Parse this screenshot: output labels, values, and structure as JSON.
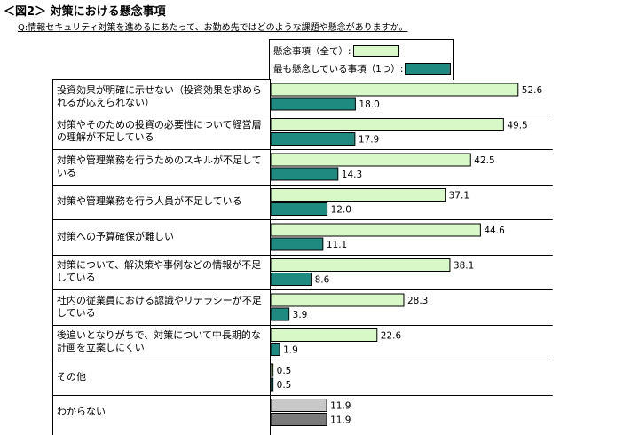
{
  "header": {
    "figure_title": "＜図2＞ 対策における懸念事項",
    "question": "Q:情報セキュリティ対策を進めるにあたって、お勤め先ではどのような課題や懸念がありますか。"
  },
  "colors": {
    "all_fill": "#d8f8c8",
    "top_fill": "#1f8a80",
    "all_fill_gray": "#c8c8c8",
    "top_fill_gray": "#7a7a7a",
    "border": "#000000"
  },
  "chart_data": {
    "type": "bar",
    "orientation": "horizontal",
    "title": "＜図2＞ 対策における懸念事項",
    "xlim": [
      0,
      60
    ],
    "legend": [
      "懸念事項（全て）:",
      "最も懸念している事項（1つ）:"
    ],
    "legend_position": "top",
    "categories": [
      "投資効果が明確に示せない（投資効果を求められるが応えられない）",
      "対策やそのための投資の必要性について経営層の理解が不足している",
      "対策や管理業務を行うためのスキルが不足している",
      "対策や管理業務を行う人員が不足している",
      "対策への予算確保が難しい",
      "対策について、解決策や事例などの情報が不足している",
      "社内の従業員における認識やリテラシーが不足している",
      "後追いとなりがちで、対策について中長期的な計画を立案しにくい",
      "その他",
      "わからない"
    ],
    "series": [
      {
        "name": "懸念事項（全て）",
        "values": [
          52.6,
          49.5,
          42.5,
          37.1,
          44.6,
          38.1,
          28.3,
          22.6,
          0.5,
          11.9
        ]
      },
      {
        "name": "最も懸念している事項（1つ）",
        "values": [
          18.0,
          17.9,
          14.3,
          12.0,
          11.1,
          8.6,
          3.9,
          1.9,
          0.5,
          11.9
        ]
      }
    ],
    "value_labels": [
      [
        "52.6",
        "49.5",
        "42.5",
        "37.1",
        "44.6",
        "38.1",
        "28.3",
        "22.6",
        "0.5",
        "11.9"
      ],
      [
        "18.0",
        "17.9",
        "14.3",
        "12.0",
        "11.1",
        "8.6",
        "3.9",
        "1.9",
        "0.5",
        "11.9"
      ]
    ]
  }
}
